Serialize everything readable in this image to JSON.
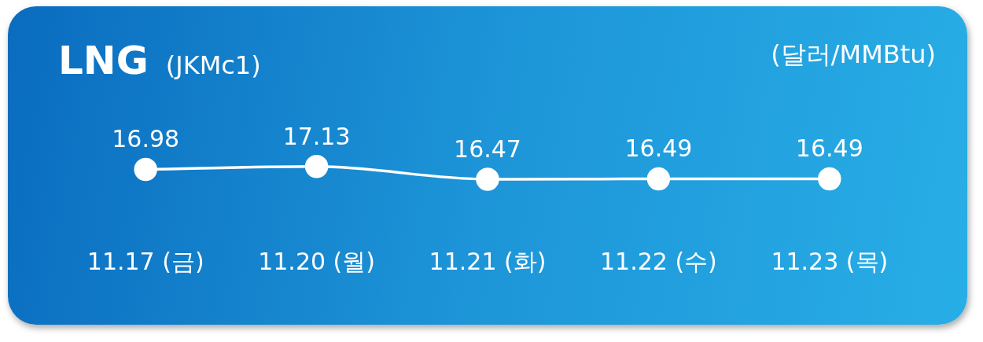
{
  "chart_data": {
    "type": "line",
    "title": "LNG",
    "subtitle": "(JKMc1)",
    "annotations": [
      "(달러/MMBtu)"
    ],
    "categories": [
      "11.17 (금)",
      "11.20 (월)",
      "11.21 (화)",
      "11.22 (수)",
      "11.23 (목)"
    ],
    "series": [
      {
        "color": "#ffffff",
        "values": [
          16.98,
          17.13,
          16.47,
          16.49,
          16.49
        ]
      }
    ],
    "data_labels": true,
    "marker": "circle",
    "tick_labels": "x"
  }
}
